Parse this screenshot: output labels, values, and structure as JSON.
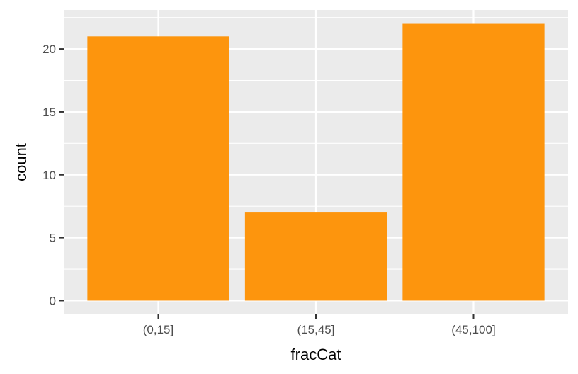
{
  "chart_data": {
    "type": "bar",
    "categories": [
      "(0,15]",
      "(15,45]",
      "(45,100]"
    ],
    "values": [
      21,
      7,
      22
    ],
    "xlabel": "fracCat",
    "ylabel": "count",
    "ylim": [
      -1.1,
      23.1
    ],
    "yticks": [
      0,
      5,
      10,
      15,
      20
    ],
    "ytick_labels": [
      "0",
      "5",
      "10",
      "15",
      "20"
    ],
    "grid": true,
    "bar_color": "#FD950D",
    "panel_color": "#EBEBEB",
    "gridline_color": "#FFFFFF"
  }
}
